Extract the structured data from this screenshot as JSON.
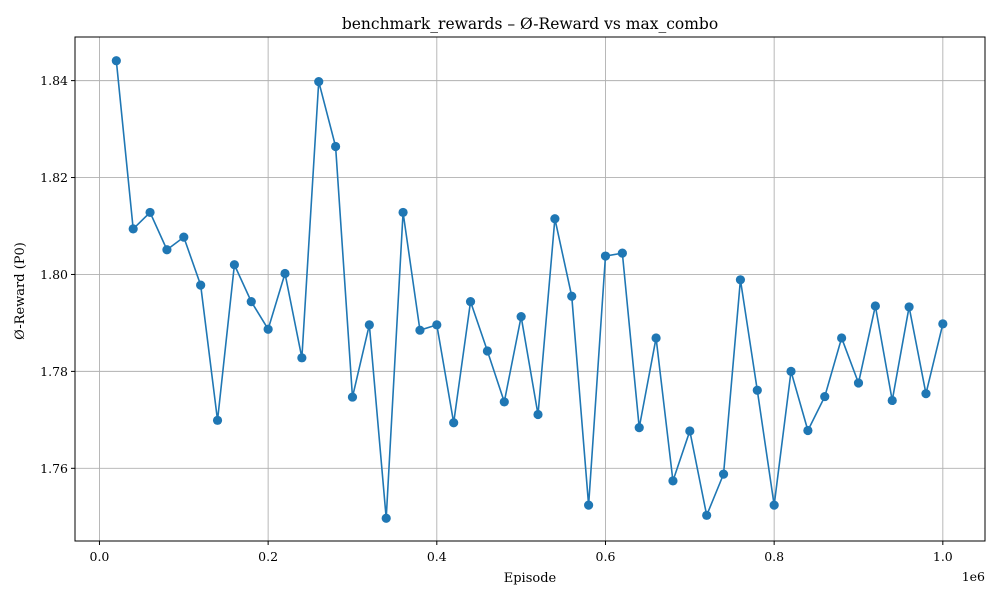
{
  "chart_data": {
    "type": "line",
    "title": "benchmark_rewards – Ø-Reward vs max_combo",
    "xlabel": "Episode",
    "ylabel": "Ø-Reward (P0)",
    "x_offset_label": "1e6",
    "xlim": [
      -0.029,
      1.05
    ],
    "ylim": [
      1.745,
      1.849
    ],
    "xticks": [
      0.0,
      0.2,
      0.4,
      0.6,
      0.8,
      1.0
    ],
    "xtick_labels": [
      "0.0",
      "0.2",
      "0.4",
      "0.6",
      "0.8",
      "1.0"
    ],
    "yticks": [
      1.76,
      1.78,
      1.8,
      1.82,
      1.84
    ],
    "ytick_labels": [
      "1.76",
      "1.78",
      "1.80",
      "1.82",
      "1.84"
    ],
    "grid": true,
    "color": "#1f77b4",
    "series": [
      {
        "x": [
          0.02,
          0.04,
          0.06,
          0.08,
          0.1,
          0.12,
          0.14,
          0.16,
          0.18,
          0.2,
          0.22,
          0.24,
          0.26,
          0.28,
          0.3,
          0.32,
          0.34,
          0.36,
          0.38,
          0.4,
          0.42,
          0.44,
          0.46,
          0.48,
          0.5,
          0.52,
          0.54,
          0.56,
          0.58,
          0.6,
          0.62,
          0.64,
          0.66,
          0.68,
          0.7,
          0.72,
          0.74,
          0.76,
          0.78,
          0.8,
          0.82,
          0.84,
          0.86,
          0.88,
          0.9,
          0.92,
          0.94,
          0.96,
          0.98,
          1.0
        ],
        "y": [
          1.8441,
          1.8094,
          1.8128,
          1.8051,
          1.8077,
          1.7978,
          1.7699,
          1.802,
          1.7944,
          1.7887,
          1.8002,
          1.7828,
          1.8398,
          1.8264,
          1.7747,
          1.7896,
          1.7497,
          1.8128,
          1.7885,
          1.7896,
          1.7694,
          1.7944,
          1.7842,
          1.7737,
          1.7913,
          1.7711,
          1.8115,
          1.7955,
          1.7524,
          1.8038,
          1.8044,
          1.7684,
          1.7869,
          1.7574,
          1.7677,
          1.7503,
          1.7588,
          1.7989,
          1.7761,
          1.7524,
          1.78,
          1.7678,
          1.7748,
          1.7869,
          1.7776,
          1.7935,
          1.774,
          1.7933,
          1.7754,
          1.7898
        ]
      }
    ]
  }
}
